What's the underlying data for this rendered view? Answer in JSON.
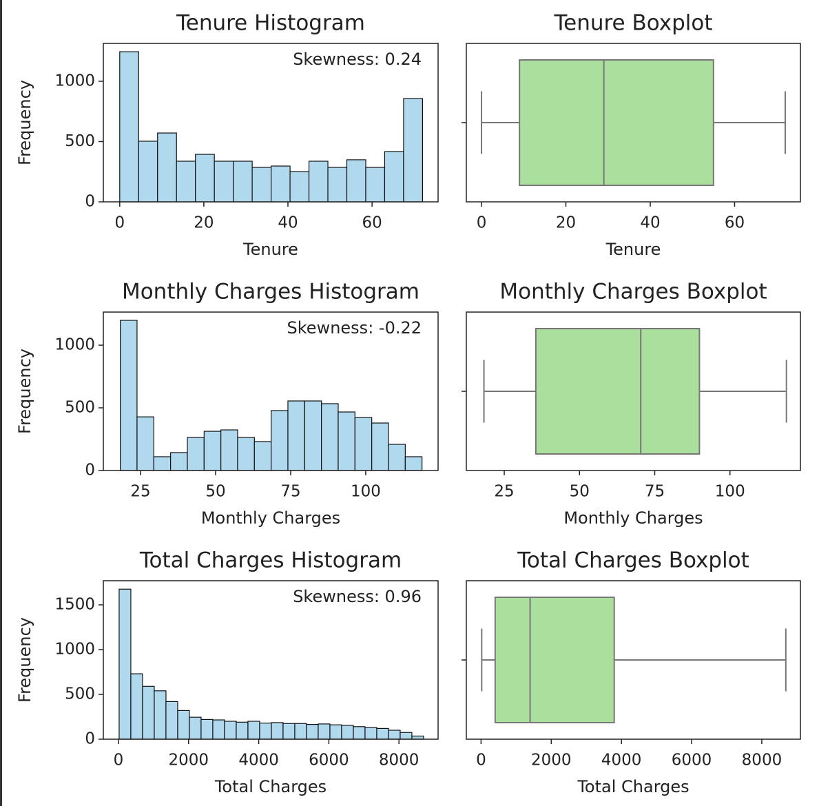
{
  "chart_data": [
    {
      "type": "histogram",
      "title": "Tenure Histogram",
      "xlabel": "Tenure",
      "ylabel": "Frequency",
      "bins": [
        0,
        4.5,
        9,
        13.5,
        18,
        22.5,
        27,
        31.5,
        36,
        40.5,
        45,
        49.5,
        54,
        58.5,
        63,
        67.5,
        72
      ],
      "values": [
        1245,
        503,
        571,
        337,
        394,
        337,
        337,
        286,
        297,
        251,
        337,
        286,
        349,
        286,
        417,
        857
      ],
      "color": "#b0d9ee",
      "edgecolor": "#111111",
      "xlim": [
        -3.9,
        75.7
      ],
      "ylim": [
        0,
        1314
      ],
      "xticks": [
        0,
        20,
        40,
        60
      ],
      "yticks": [
        0,
        500,
        1000
      ],
      "annotation": "Skewness: 0.24",
      "annotation_color": "#e8403a"
    },
    {
      "type": "box",
      "title": "Tenure Boxplot",
      "xlabel": "Tenure",
      "whislo": 0,
      "q1": 9,
      "med": 29,
      "q3": 55,
      "whishi": 72,
      "color": "#aadf9e",
      "edgecolor": "#777777",
      "xlim": [
        -3.6,
        75.6
      ],
      "xticks": [
        0,
        20,
        40,
        60
      ]
    },
    {
      "type": "histogram",
      "title": "Monthly Charges Histogram",
      "xlabel": "Monthly Charges",
      "ylabel": "Frequency",
      "bins": [
        18.25,
        23.83,
        29.42,
        35,
        40.58,
        46.17,
        51.75,
        57.33,
        62.92,
        68.5,
        74.08,
        79.67,
        85.25,
        90.83,
        96.42,
        102,
        107.58,
        113.17,
        118.75
      ],
      "values": [
        1198,
        428,
        110,
        143,
        264,
        313,
        324,
        264,
        231,
        478,
        555,
        555,
        533,
        467,
        423,
        379,
        209,
        110
      ],
      "color": "#b0d9ee",
      "edgecolor": "#111111",
      "xlim": [
        12.6,
        124.1
      ],
      "ylim": [
        0,
        1264
      ],
      "xticks": [
        25,
        50,
        75,
        100
      ],
      "yticks": [
        0,
        500,
        1000
      ],
      "annotation": "Skewness: -0.22",
      "annotation_color": "#e8403a"
    },
    {
      "type": "box",
      "title": "Monthly Charges Boxplot",
      "xlabel": "Monthly Charges",
      "whislo": 18.25,
      "q1": 35.5,
      "med": 70.35,
      "q3": 89.85,
      "whishi": 118.75,
      "color": "#aadf9e",
      "edgecolor": "#777777",
      "xlim": [
        12.4,
        123.4
      ],
      "xticks": [
        25,
        50,
        75,
        100
      ]
    },
    {
      "type": "histogram",
      "title": "Total Charges Histogram",
      "xlabel": "Total Charges",
      "ylabel": "Frequency",
      "bins": [
        18.8,
        352.8,
        686.8,
        1020.8,
        1354.8,
        1688.8,
        2022.8,
        2356.8,
        2690.8,
        3024.8,
        3358.8,
        3692.8,
        4026.8,
        4360.8,
        4694.8,
        5028.8,
        5362.8,
        5696.8,
        6030.8,
        6364.8,
        6698.8,
        7032.8,
        7366.8,
        7700.8,
        8034.8,
        8368.8,
        8702.8
      ],
      "values": [
        1675,
        730,
        590,
        540,
        420,
        320,
        245,
        220,
        215,
        200,
        190,
        200,
        180,
        185,
        175,
        175,
        165,
        170,
        160,
        155,
        140,
        130,
        120,
        100,
        75,
        35
      ],
      "color": "#b0d9ee",
      "edgecolor": "#111111",
      "xlim": [
        -432,
        9116
      ],
      "ylim": [
        0,
        1769
      ],
      "xticks": [
        0,
        2000,
        4000,
        6000,
        8000
      ],
      "yticks": [
        0,
        500,
        1000,
        1500
      ],
      "annotation": "Skewness: 0.96",
      "annotation_color": "#e8403a"
    },
    {
      "type": "box",
      "title": "Total Charges Boxplot",
      "xlabel": "Total Charges",
      "whislo": 18.8,
      "q1": 401.45,
      "med": 1397.48,
      "q3": 3794.74,
      "whishi": 8684.8,
      "color": "#aadf9e",
      "edgecolor": "#777777",
      "xlim": [
        -420,
        9100
      ],
      "xticks": [
        0,
        2000,
        4000,
        6000,
        8000
      ]
    }
  ]
}
